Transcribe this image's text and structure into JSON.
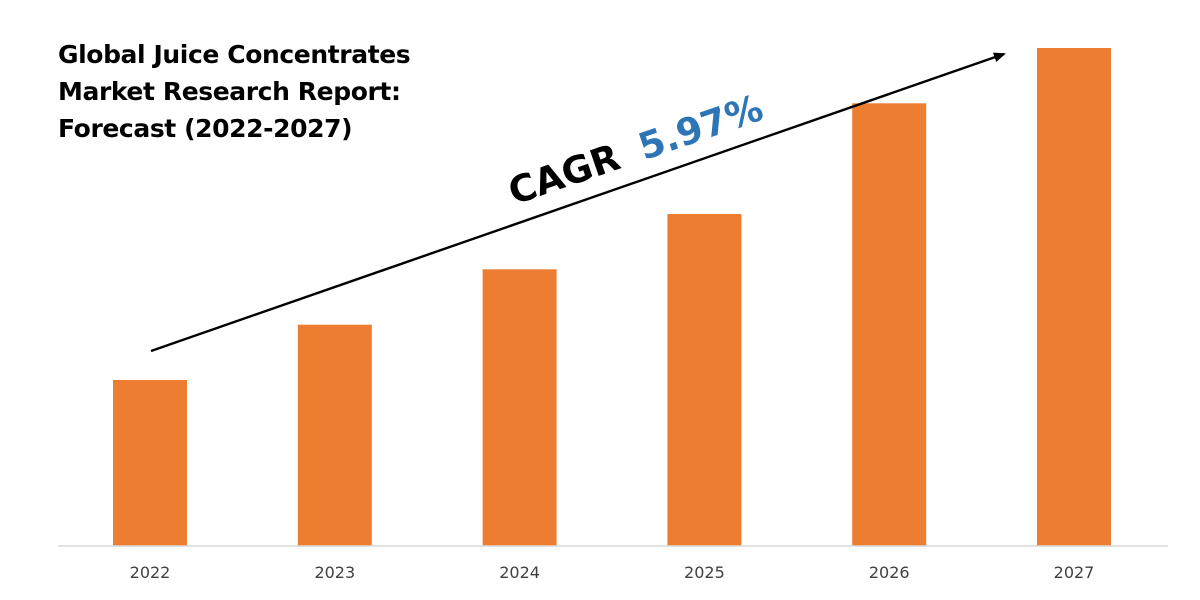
{
  "chart_data": {
    "type": "bar",
    "title_lines": [
      "Global Juice Concentrates",
      "Market Research Report:",
      "Forecast (2022-2027)"
    ],
    "categories": [
      "2022",
      "2023",
      "2024",
      "2025",
      "2026",
      "2027"
    ],
    "values": [
      30,
      40,
      50,
      60,
      80,
      90
    ],
    "ylim": [
      0,
      100
    ],
    "xlabel": "",
    "ylabel": "",
    "grid": false,
    "legend": "none",
    "annotation": {
      "prefix": "CAGR",
      "value": "5.97%"
    },
    "colors": {
      "bar": "#ED7D31",
      "axis": "#D9D9D9",
      "tick_label": "#404040",
      "annotation_prefix": "#000000",
      "annotation_value": "#2E75B6",
      "arrow": "#000000"
    }
  }
}
